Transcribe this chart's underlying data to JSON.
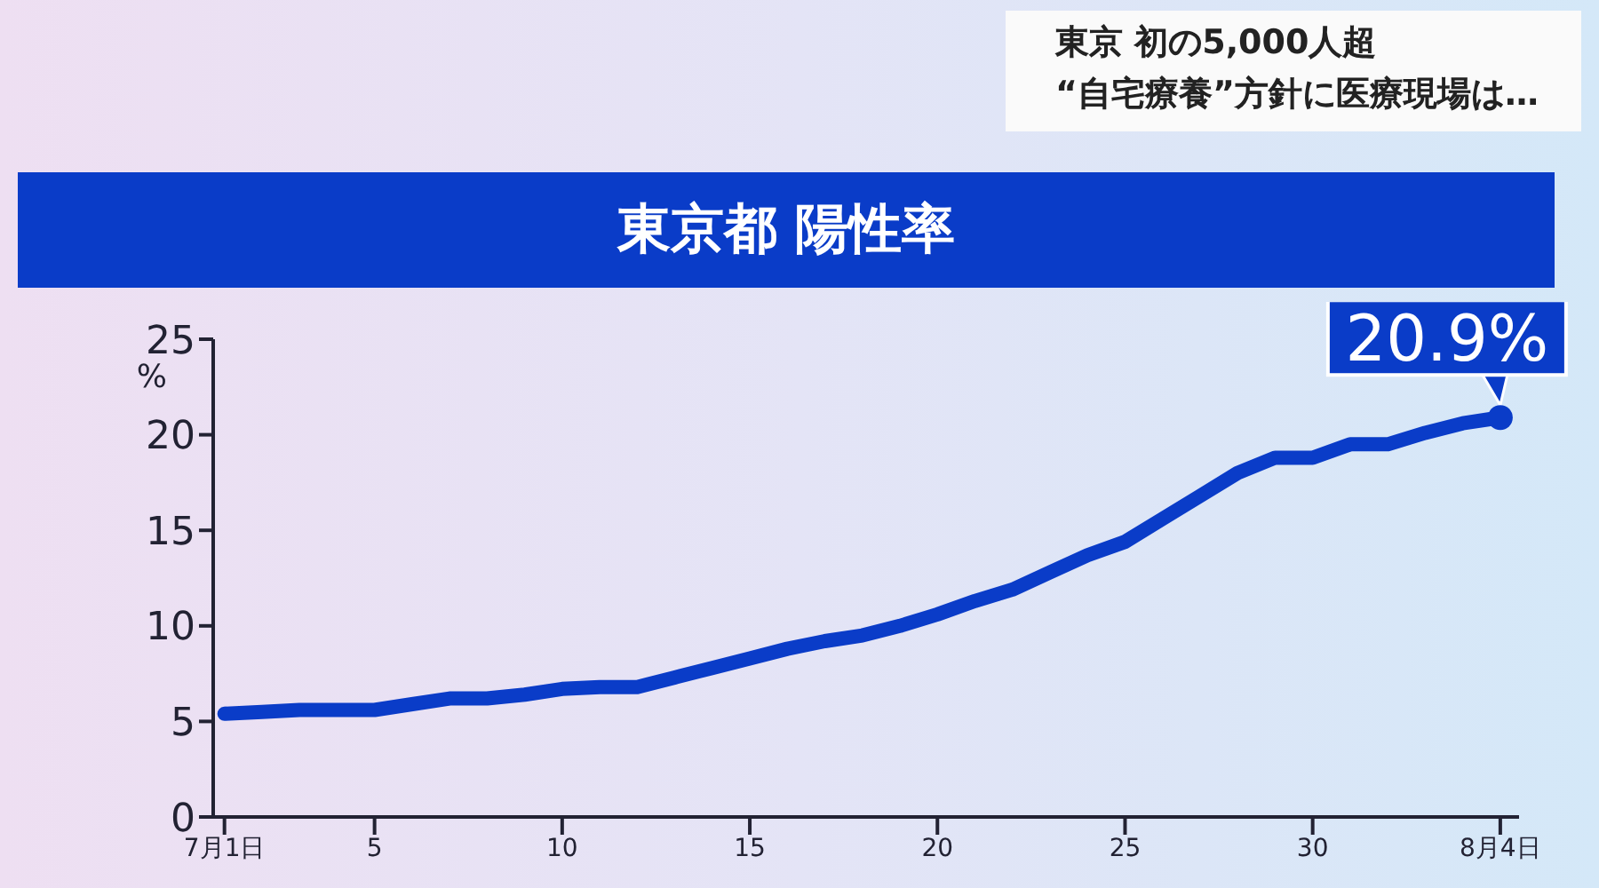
{
  "chart_data": {
    "type": "line",
    "title": "東京都 陽性率",
    "ylabel": "%",
    "annotations": [
      "東京 初の5,000人超",
      "“自宅療養”方針に医療現場は…"
    ],
    "x": [
      1,
      2,
      3,
      4,
      5,
      6,
      7,
      8,
      9,
      10,
      11,
      12,
      13,
      14,
      15,
      16,
      17,
      18,
      19,
      20,
      21,
      22,
      23,
      24,
      25,
      26,
      27,
      28,
      29,
      30,
      31,
      32,
      33,
      34,
      35
    ],
    "series": [
      {
        "color": "#0a3cc8",
        "values": [
          5.4,
          5.5,
          5.6,
          5.6,
          5.6,
          5.9,
          6.2,
          6.2,
          6.4,
          6.7,
          6.8,
          6.8,
          7.3,
          7.8,
          8.3,
          8.8,
          9.2,
          9.5,
          10.0,
          10.6,
          11.3,
          11.9,
          12.8,
          13.7,
          14.4,
          15.6,
          16.8,
          18.0,
          18.8,
          18.8,
          19.5,
          19.5,
          20.1,
          20.6,
          20.9
        ],
        "value_labels": [
          null,
          null,
          null,
          null,
          null,
          null,
          null,
          null,
          null,
          null,
          null,
          null,
          null,
          null,
          null,
          null,
          null,
          null,
          null,
          null,
          null,
          null,
          null,
          null,
          null,
          null,
          null,
          null,
          null,
          null,
          null,
          null,
          null,
          null,
          "20.9%"
        ]
      }
    ],
    "xlim": [
      0.7,
      35.5
    ],
    "xticks": [
      {
        "value": 1,
        "label": "7月1日"
      },
      5,
      10,
      15,
      20,
      25,
      30,
      {
        "value": 35,
        "label": "8月4日"
      }
    ],
    "ylim": [
      0,
      25
    ],
    "yticks": [
      0,
      5,
      10,
      15,
      20,
      25
    ],
    "grid": false,
    "legend": false
  }
}
